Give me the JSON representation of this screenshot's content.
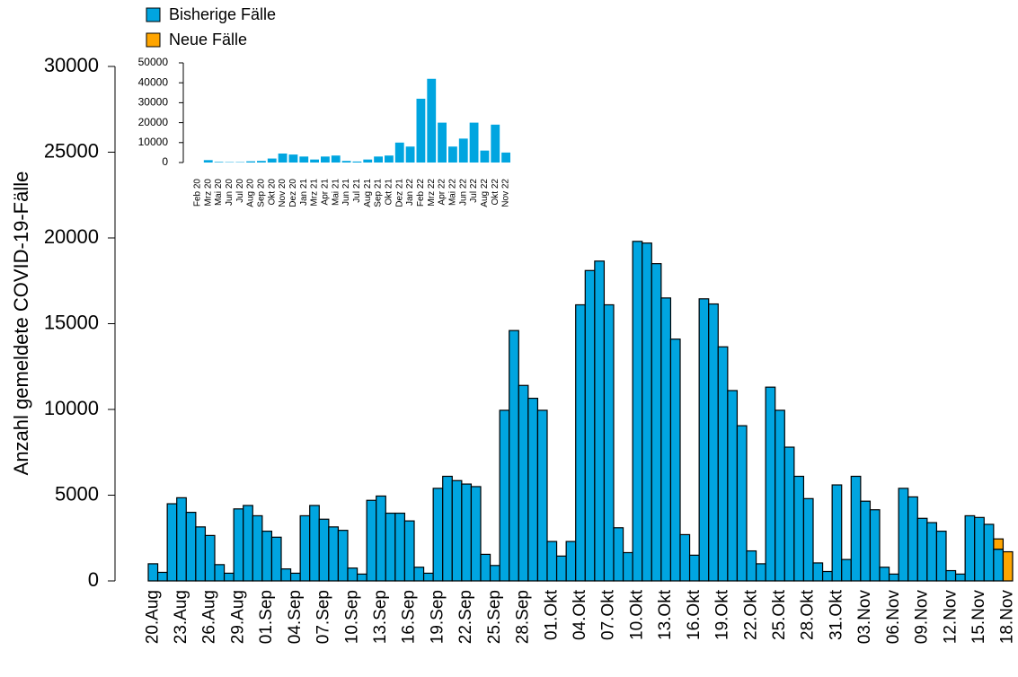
{
  "chart_data": [
    {
      "type": "bar",
      "stacked": true,
      "y_label": "Anzahl gemeldete COVID-19-Fälle",
      "categories": [
        "20.Aug",
        null,
        null,
        "23.Aug",
        null,
        null,
        "26.Aug",
        null,
        null,
        "29.Aug",
        null,
        null,
        "01.Sep",
        null,
        null,
        "04.Sep",
        null,
        null,
        "07.Sep",
        null,
        null,
        "10.Sep",
        null,
        null,
        "13.Sep",
        null,
        null,
        "16.Sep",
        null,
        null,
        "19.Sep",
        null,
        null,
        "22.Sep",
        null,
        null,
        "25.Sep",
        null,
        null,
        "28.Sep",
        null,
        null,
        "01.Okt",
        null,
        null,
        "04.Okt",
        null,
        null,
        "07.Okt",
        null,
        null,
        "10.Okt",
        null,
        null,
        "13.Okt",
        null,
        null,
        "16.Okt",
        null,
        null,
        "19.Okt",
        null,
        null,
        "22.Okt",
        null,
        null,
        "25.Okt",
        null,
        null,
        "28.Okt",
        null,
        null,
        "31.Okt",
        null,
        null,
        "03.Nov",
        null,
        null,
        "06.Nov",
        null,
        null,
        "09.Nov",
        null,
        null,
        "12.Nov",
        null,
        null,
        "15.Nov",
        null,
        null,
        "18.Nov"
      ],
      "series": [
        {
          "name": "Bisherige Fälle",
          "color": "#00a5e0",
          "values": [
            1000,
            500,
            4500,
            4850,
            4000,
            3150,
            2650,
            950,
            450,
            4200,
            4400,
            3800,
            2900,
            2550,
            700,
            450,
            3800,
            4400,
            3600,
            3150,
            2950,
            750,
            400,
            4700,
            4950,
            3950,
            3950,
            3500,
            800,
            450,
            5400,
            6100,
            5850,
            5650,
            5500,
            1550,
            900,
            9950,
            14600,
            11400,
            10650,
            9950,
            2300,
            1450,
            2300,
            16100,
            18100,
            18650,
            16100,
            3100,
            1650,
            19800,
            19700,
            18500,
            16500,
            14100,
            2700,
            1500,
            16450,
            16150,
            13650,
            11100,
            9050,
            1750,
            1000,
            11300,
            9950,
            7800,
            6100,
            4800,
            1050,
            550,
            5600,
            1250,
            6100,
            4650,
            4150,
            800,
            400,
            5400,
            4900,
            3650,
            3400,
            2900,
            600,
            400,
            3800,
            3700,
            3300,
            1850,
            0
          ]
        },
        {
          "name": "Neue Fälle",
          "color": "#ffa500",
          "values": [
            0,
            0,
            0,
            0,
            0,
            0,
            0,
            0,
            0,
            0,
            0,
            0,
            0,
            0,
            0,
            0,
            0,
            0,
            0,
            0,
            0,
            0,
            0,
            0,
            0,
            0,
            0,
            0,
            0,
            0,
            0,
            0,
            0,
            0,
            0,
            0,
            0,
            0,
            0,
            0,
            0,
            0,
            0,
            0,
            0,
            0,
            0,
            0,
            0,
            0,
            0,
            0,
            0,
            0,
            0,
            0,
            0,
            0,
            0,
            0,
            0,
            0,
            0,
            0,
            0,
            0,
            0,
            0,
            0,
            0,
            0,
            0,
            0,
            0,
            0,
            0,
            0,
            0,
            0,
            0,
            0,
            0,
            0,
            0,
            0,
            0,
            0,
            0,
            0,
            600,
            1700
          ]
        }
      ],
      "ylim": [
        0,
        30000
      ],
      "yticks": [
        0,
        5000,
        10000,
        15000,
        20000,
        25000,
        30000
      ]
    },
    {
      "type": "bar",
      "categories": [
        "Feb 20",
        "Mrz 20",
        "Mai 20",
        "Jun 20",
        "Jul 20",
        "Aug 20",
        "Sep 20",
        "Okt 20",
        "Nov 20",
        "Dez 20",
        "Jan 21",
        "Mrz 21",
        "Apr 21",
        "Mai 21",
        "Jun 21",
        "Jul 21",
        "Aug 21",
        "Sep 21",
        "Okt 21",
        "Dez 21",
        "Jan 22",
        "Feb 22",
        "Mrz 22",
        "Apr 22",
        "Mai 22",
        "Jun 22",
        "Jul 22",
        "Aug 22",
        "Okt 22",
        "Nov 22"
      ],
      "values": [
        0,
        1200,
        300,
        200,
        200,
        600,
        800,
        2000,
        4500,
        4000,
        3000,
        1500,
        3000,
        3500,
        800,
        500,
        1500,
        3000,
        3500,
        10000,
        8000,
        32000,
        42000,
        20000,
        8000,
        12000,
        20000,
        6000,
        19000,
        5000
      ],
      "color": "#00a5e0",
      "ylim": [
        0,
        50000
      ],
      "yticks": [
        0,
        10000,
        20000,
        30000,
        40000,
        50000
      ]
    }
  ]
}
